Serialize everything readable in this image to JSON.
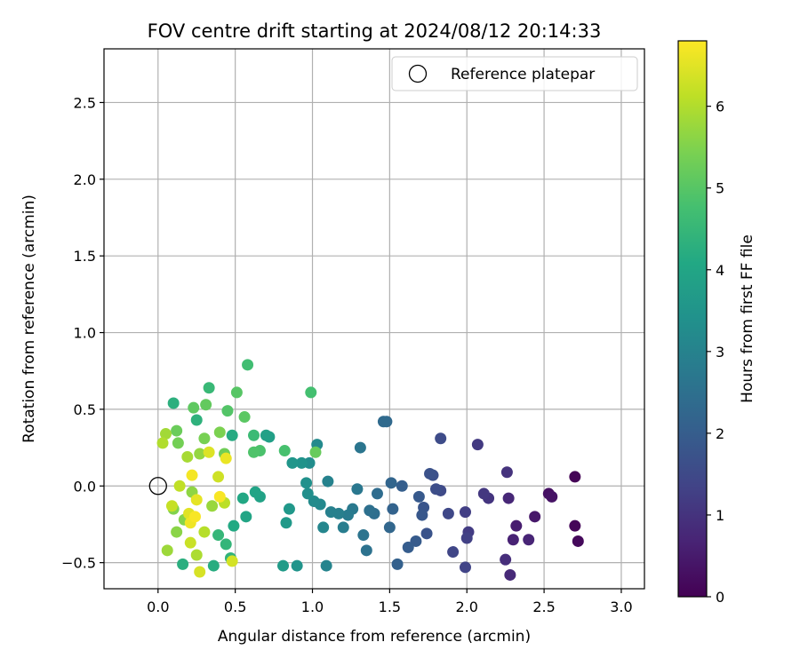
{
  "chart_data": {
    "type": "scatter",
    "title": "FOV centre drift starting at 2024/08/12 20:14:33",
    "xlabel": "Angular distance from reference (arcmin)",
    "ylabel": "Rotation from reference (arcmin)",
    "xlim": [
      -0.35,
      3.15
    ],
    "ylim": [
      -0.67,
      2.85
    ],
    "xticks": [
      0.0,
      0.5,
      1.0,
      1.5,
      2.0,
      2.5,
      3.0
    ],
    "xtick_labels": [
      "0.0",
      "0.5",
      "1.0",
      "1.5",
      "2.0",
      "2.5",
      "3.0"
    ],
    "yticks": [
      -0.5,
      0.0,
      0.5,
      1.0,
      1.5,
      2.0,
      2.5
    ],
    "ytick_labels": [
      "−0.5",
      "0.0",
      "0.5",
      "1.0",
      "1.5",
      "2.0",
      "2.5"
    ],
    "grid": true,
    "legend": {
      "position": "top-right",
      "entries": [
        {
          "label": "Reference platepar",
          "marker": "open-circle"
        }
      ]
    },
    "reference_point": {
      "x": 0.0,
      "y": 0.0
    },
    "colorbar": {
      "label": "Hours from first FF file",
      "colormap": "viridis",
      "range": [
        0,
        6.8
      ],
      "ticks": [
        0,
        1,
        2,
        3,
        4,
        5,
        6
      ],
      "tick_labels": [
        "0",
        "1",
        "2",
        "3",
        "4",
        "5",
        "6"
      ]
    },
    "series": [
      {
        "points": [
          [
            2.7,
            0.06,
            0.05
          ],
          [
            2.7,
            -0.26,
            0.1
          ],
          [
            2.72,
            -0.36,
            0.15
          ],
          [
            2.53,
            -0.05,
            0.3
          ],
          [
            2.55,
            -0.07,
            0.35
          ],
          [
            2.44,
            -0.2,
            0.45
          ],
          [
            2.32,
            -0.26,
            0.55
          ],
          [
            2.3,
            -0.35,
            0.65
          ],
          [
            2.4,
            -0.35,
            0.7
          ],
          [
            2.27,
            -0.08,
            0.75
          ],
          [
            2.28,
            -0.58,
            0.8
          ],
          [
            2.25,
            -0.48,
            0.9
          ],
          [
            2.26,
            0.09,
            1.0
          ],
          [
            2.14,
            -0.08,
            1.05
          ],
          [
            2.11,
            -0.05,
            1.1
          ],
          [
            2.07,
            0.27,
            1.15
          ],
          [
            2.01,
            -0.3,
            1.2
          ],
          [
            1.99,
            -0.17,
            1.25
          ],
          [
            2.0,
            -0.34,
            1.3
          ],
          [
            1.99,
            -0.53,
            1.35
          ],
          [
            1.91,
            -0.43,
            1.4
          ],
          [
            1.88,
            -0.18,
            1.45
          ],
          [
            1.83,
            -0.03,
            1.5
          ],
          [
            1.83,
            0.31,
            1.55
          ],
          [
            1.8,
            -0.02,
            1.6
          ],
          [
            1.78,
            0.07,
            1.65
          ],
          [
            1.76,
            0.08,
            1.7
          ],
          [
            1.74,
            -0.31,
            1.75
          ],
          [
            1.72,
            -0.14,
            1.8
          ],
          [
            1.71,
            -0.19,
            1.85
          ],
          [
            1.69,
            -0.07,
            1.9
          ],
          [
            1.67,
            -0.36,
            1.95
          ],
          [
            1.62,
            -0.4,
            2.0
          ],
          [
            1.58,
            0.0,
            2.05
          ],
          [
            1.55,
            -0.51,
            2.1
          ],
          [
            1.52,
            -0.15,
            2.15
          ],
          [
            1.51,
            0.02,
            2.2
          ],
          [
            1.5,
            -0.27,
            2.25
          ],
          [
            1.48,
            0.42,
            2.3
          ],
          [
            1.46,
            0.42,
            2.35
          ],
          [
            1.42,
            -0.05,
            2.4
          ],
          [
            1.4,
            -0.18,
            2.45
          ],
          [
            1.37,
            -0.16,
            2.5
          ],
          [
            1.35,
            -0.42,
            2.55
          ],
          [
            1.33,
            -0.32,
            2.6
          ],
          [
            1.31,
            0.25,
            2.65
          ],
          [
            1.29,
            -0.02,
            2.7
          ],
          [
            1.26,
            -0.15,
            2.75
          ],
          [
            1.23,
            -0.19,
            2.8
          ],
          [
            1.2,
            -0.27,
            2.85
          ],
          [
            1.17,
            -0.18,
            2.9
          ],
          [
            1.12,
            -0.17,
            2.95
          ],
          [
            1.1,
            0.03,
            3.0
          ],
          [
            1.09,
            -0.52,
            3.05
          ],
          [
            1.07,
            -0.27,
            3.1
          ],
          [
            1.05,
            -0.12,
            3.15
          ],
          [
            1.03,
            0.27,
            3.2
          ],
          [
            1.01,
            -0.1,
            3.25
          ],
          [
            0.98,
            0.15,
            3.3
          ],
          [
            0.97,
            -0.05,
            3.35
          ],
          [
            0.96,
            0.02,
            3.4
          ],
          [
            0.93,
            0.15,
            3.45
          ],
          [
            0.9,
            -0.52,
            3.5
          ],
          [
            0.87,
            0.15,
            3.55
          ],
          [
            0.85,
            -0.15,
            3.6
          ],
          [
            0.83,
            -0.24,
            3.65
          ],
          [
            0.81,
            -0.52,
            3.7
          ],
          [
            0.72,
            0.32,
            3.8
          ],
          [
            0.7,
            0.33,
            3.85
          ],
          [
            0.66,
            -0.07,
            3.9
          ],
          [
            0.63,
            -0.04,
            3.95
          ],
          [
            0.57,
            -0.2,
            4.0
          ],
          [
            0.55,
            -0.08,
            4.05
          ],
          [
            0.49,
            -0.26,
            4.1
          ],
          [
            0.48,
            0.33,
            4.15
          ],
          [
            0.36,
            -0.52,
            4.2
          ],
          [
            0.16,
            -0.51,
            4.25
          ],
          [
            0.1,
            0.54,
            4.3
          ],
          [
            0.25,
            0.43,
            4.35
          ],
          [
            0.47,
            -0.47,
            4.4
          ],
          [
            0.44,
            -0.38,
            4.45
          ],
          [
            0.39,
            -0.32,
            4.5
          ],
          [
            0.33,
            0.64,
            4.55
          ],
          [
            0.62,
            0.33,
            4.6
          ],
          [
            0.58,
            0.79,
            4.7
          ],
          [
            0.99,
            0.61,
            4.75
          ],
          [
            0.82,
            0.23,
            4.8
          ],
          [
            0.66,
            0.23,
            4.85
          ],
          [
            0.62,
            0.22,
            4.9
          ],
          [
            0.45,
            0.49,
            4.95
          ],
          [
            0.51,
            0.61,
            5.0
          ],
          [
            0.56,
            0.45,
            5.05
          ],
          [
            0.23,
            0.51,
            5.1
          ],
          [
            0.31,
            0.53,
            5.15
          ],
          [
            1.02,
            0.22,
            5.2
          ],
          [
            0.12,
            0.36,
            5.25
          ],
          [
            0.43,
            0.21,
            5.3
          ],
          [
            0.13,
            0.28,
            5.35
          ],
          [
            0.3,
            0.31,
            5.4
          ],
          [
            0.4,
            0.35,
            5.45
          ],
          [
            0.1,
            -0.15,
            5.5
          ],
          [
            0.17,
            -0.22,
            5.55
          ],
          [
            0.12,
            -0.3,
            5.6
          ],
          [
            0.22,
            -0.04,
            5.65
          ],
          [
            0.27,
            0.21,
            5.7
          ],
          [
            0.35,
            -0.13,
            5.75
          ],
          [
            0.06,
            -0.42,
            5.8
          ],
          [
            0.05,
            0.34,
            5.85
          ],
          [
            0.19,
            0.19,
            5.9
          ],
          [
            0.25,
            -0.45,
            5.95
          ],
          [
            0.03,
            0.28,
            6.0
          ],
          [
            0.3,
            -0.3,
            6.05
          ],
          [
            0.43,
            -0.11,
            6.1
          ],
          [
            0.14,
            0.0,
            6.15
          ],
          [
            0.09,
            -0.13,
            6.2
          ],
          [
            0.21,
            -0.37,
            6.25
          ],
          [
            0.39,
            0.06,
            6.3
          ],
          [
            0.48,
            -0.49,
            6.35
          ],
          [
            0.27,
            -0.56,
            6.4
          ],
          [
            0.33,
            0.22,
            6.45
          ],
          [
            0.2,
            -0.18,
            6.5
          ],
          [
            0.25,
            -0.09,
            6.55
          ],
          [
            0.44,
            0.18,
            6.6
          ],
          [
            0.21,
            -0.24,
            6.65
          ],
          [
            0.22,
            0.07,
            6.7
          ],
          [
            0.24,
            -0.2,
            6.75
          ],
          [
            0.4,
            -0.07,
            6.75
          ]
        ]
      }
    ]
  }
}
